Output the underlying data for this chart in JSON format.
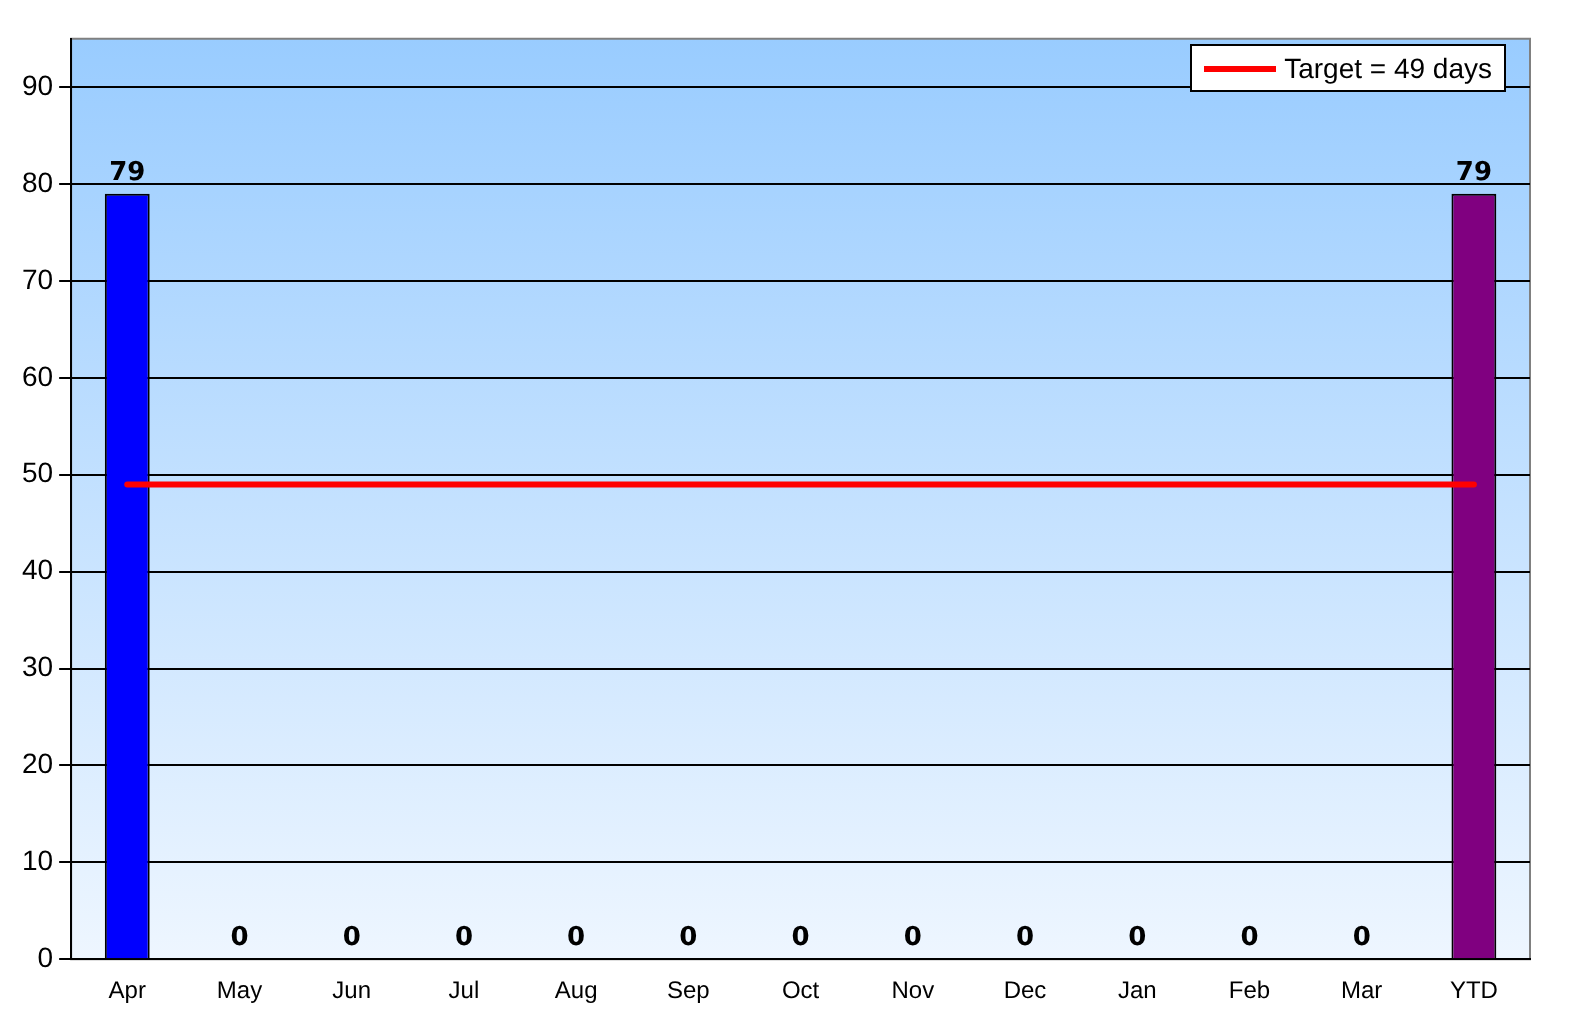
{
  "chart_data": {
    "type": "bar",
    "categories": [
      "Apr",
      "May",
      "Jun",
      "Jul",
      "Aug",
      "Sep",
      "Oct",
      "Nov",
      "Dec",
      "Jan",
      "Feb",
      "Mar",
      "YTD"
    ],
    "values": [
      79,
      0,
      0,
      0,
      0,
      0,
      0,
      0,
      0,
      0,
      0,
      0,
      79
    ],
    "colors": [
      "#0000ff",
      "#0000ff",
      "#0000ff",
      "#0000ff",
      "#0000ff",
      "#0000ff",
      "#0000ff",
      "#0000ff",
      "#0000ff",
      "#0000ff",
      "#0000ff",
      "#0000ff",
      "#800080"
    ],
    "ylim": [
      0,
      95
    ],
    "yticks": [
      0,
      10,
      20,
      30,
      40,
      50,
      60,
      70,
      80,
      90
    ],
    "grid": "y",
    "data_labels": true,
    "legend": "top right",
    "ref_lines": [
      {
        "axis": "y",
        "value": 49,
        "label": "Target = 49 days",
        "color": "#ff0000",
        "line_style": "solid"
      }
    ]
  }
}
